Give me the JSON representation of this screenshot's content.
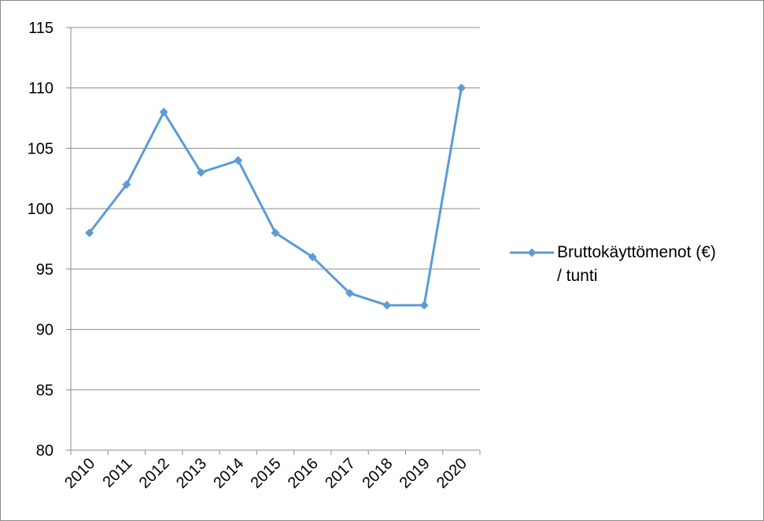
{
  "chart_data": {
    "type": "line",
    "categories": [
      "2010",
      "2011",
      "2012",
      "2013",
      "2014",
      "2015",
      "2016",
      "2017",
      "2018",
      "2019",
      "2020"
    ],
    "series": [
      {
        "name": "Bruttokäyttömenot (€) / tunti",
        "values": [
          98,
          102,
          108,
          103,
          104,
          98,
          96,
          93,
          92,
          92,
          110
        ],
        "color": "#5b9bd5",
        "marker": "diamond"
      }
    ],
    "ylim": [
      80,
      115
    ],
    "yticks": [
      80,
      85,
      90,
      95,
      100,
      105,
      110,
      115
    ],
    "grid": true,
    "legend": "right",
    "title": "",
    "xlabel": "",
    "ylabel": ""
  },
  "legend": {
    "line1": "Bruttokäyttömenot (€)",
    "line2": "/ tunti"
  }
}
